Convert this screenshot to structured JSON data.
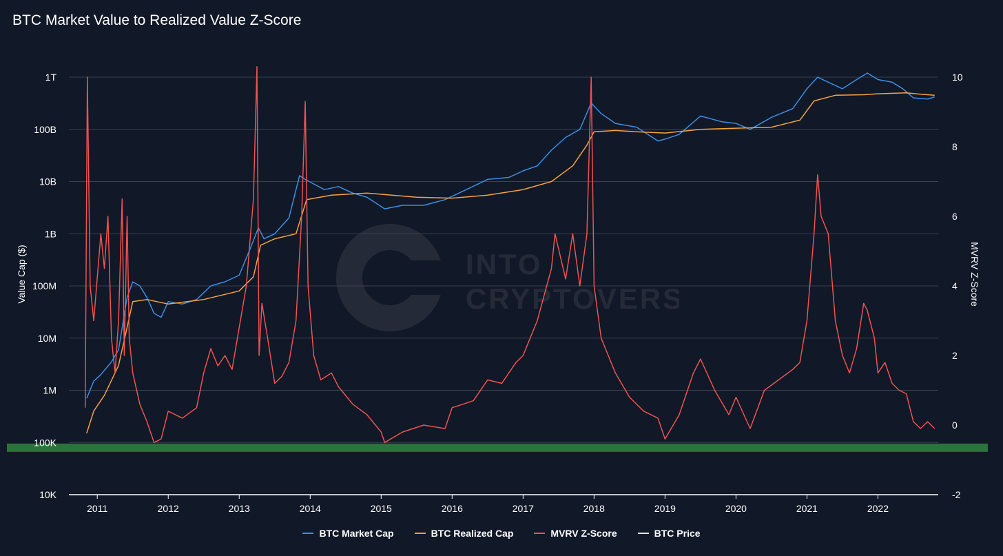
{
  "chart_data": {
    "type": "line",
    "title": "BTC Market Value to Realized Value Z-Score",
    "ylabel_left": "Value Cap ($)",
    "ylabel_right": "MVRV Z-Score",
    "left_axis": {
      "scale": "log",
      "ylim": [
        10000,
        1000000000000
      ],
      "ticks": [
        {
          "value": 1000000000000,
          "label": "1T"
        },
        {
          "value": 100000000000,
          "label": "100B"
        },
        {
          "value": 10000000000,
          "label": "10B"
        },
        {
          "value": 1000000000,
          "label": "1B"
        },
        {
          "value": 100000000,
          "label": "100M"
        },
        {
          "value": 10000000,
          "label": "10M"
        },
        {
          "value": 1000000,
          "label": "1M"
        },
        {
          "value": 100000,
          "label": "100K"
        },
        {
          "value": 10000,
          "label": "10K"
        }
      ]
    },
    "right_axis": {
      "scale": "linear",
      "ylim": [
        -2,
        10
      ],
      "ticks": [
        {
          "value": 10,
          "label": "10"
        },
        {
          "value": 8,
          "label": "8"
        },
        {
          "value": 6,
          "label": "6"
        },
        {
          "value": 4,
          "label": "4"
        },
        {
          "value": 2,
          "label": "2"
        },
        {
          "value": 0,
          "label": "0"
        },
        {
          "value": -2,
          "label": "-2"
        }
      ]
    },
    "x_axis": {
      "xlim": [
        2010.6,
        2022.85
      ],
      "ticks": [
        "2011",
        "2012",
        "2013",
        "2014",
        "2015",
        "2016",
        "2017",
        "2018",
        "2019",
        "2020",
        "2021",
        "2022"
      ]
    },
    "grid": true,
    "legend_position": "bottom-center",
    "green_band": {
      "color": "#2f7d3f",
      "z_value": -0.65
    },
    "watermark": {
      "lines": [
        "INTO",
        "CRYPTOVERSE"
      ]
    },
    "series": [
      {
        "name": "BTC Market Cap",
        "color": "#3b8fe6",
        "axis": "left",
        "x": [
          2010.85,
          2010.95,
          2011.05,
          2011.2,
          2011.3,
          2011.42,
          2011.5,
          2011.6,
          2011.7,
          2011.8,
          2011.9,
          2012.0,
          2012.2,
          2012.4,
          2012.6,
          2012.8,
          2013.0,
          2013.15,
          2013.27,
          2013.35,
          2013.5,
          2013.7,
          2013.85,
          2013.93,
          2014.05,
          2014.2,
          2014.4,
          2014.6,
          2014.8,
          2015.05,
          2015.3,
          2015.6,
          2015.9,
          2016.2,
          2016.5,
          2016.8,
          2017.0,
          2017.2,
          2017.4,
          2017.6,
          2017.8,
          2017.96,
          2018.1,
          2018.3,
          2018.6,
          2018.9,
          2019.0,
          2019.2,
          2019.5,
          2019.8,
          2020.0,
          2020.2,
          2020.5,
          2020.8,
          2021.0,
          2021.15,
          2021.3,
          2021.5,
          2021.7,
          2021.85,
          2022.0,
          2022.2,
          2022.35,
          2022.5,
          2022.7,
          2022.8
        ],
        "values": [
          700000,
          1500000,
          2000000,
          3500000,
          6000000,
          60000000,
          120000000,
          100000000,
          60000000,
          30000000,
          25000000,
          50000000,
          45000000,
          55000000,
          100000000,
          120000000,
          160000000,
          500000000,
          1300000000,
          800000000,
          1000000000,
          2000000000,
          13000000000,
          11000000000,
          9000000000,
          7000000000,
          8000000000,
          6000000000,
          5000000000,
          3000000000,
          3500000000,
          3500000000,
          4500000000,
          7000000000,
          11000000000,
          12000000000,
          16000000000,
          20000000000,
          40000000000,
          70000000000,
          100000000000,
          320000000000,
          200000000000,
          130000000000,
          110000000000,
          60000000000,
          65000000000,
          80000000000,
          180000000000,
          140000000000,
          130000000000,
          100000000000,
          170000000000,
          250000000000,
          600000000000,
          1000000000000,
          800000000000,
          600000000000,
          900000000000,
          1200000000000,
          900000000000,
          800000000000,
          600000000000,
          400000000000,
          380000000000,
          420000000000
        ]
      },
      {
        "name": "BTC Realized Cap",
        "color": "#f5a33c",
        "axis": "left",
        "x": [
          2010.85,
          2010.95,
          2011.1,
          2011.3,
          2011.4,
          2011.5,
          2011.7,
          2012.0,
          2012.5,
          2013.0,
          2013.2,
          2013.3,
          2013.5,
          2013.8,
          2013.95,
          2014.3,
          2014.8,
          2015.5,
          2016.0,
          2016.5,
          2017.0,
          2017.4,
          2017.7,
          2017.9,
          2018.0,
          2018.3,
          2018.6,
          2019.0,
          2019.5,
          2020.0,
          2020.5,
          2020.9,
          2021.1,
          2021.4,
          2021.8,
          2022.0,
          2022.4,
          2022.6,
          2022.8
        ],
        "values": [
          150000,
          400000,
          800000,
          3000000,
          12000000,
          50000000,
          55000000,
          45000000,
          55000000,
          80000000,
          150000000,
          600000000,
          800000000,
          1000000000,
          4500000000,
          5500000000,
          6000000000,
          5000000000,
          4800000000,
          5500000000,
          7000000000,
          10000000000,
          20000000000,
          50000000000,
          90000000000,
          95000000000,
          90000000000,
          85000000000,
          100000000000,
          105000000000,
          110000000000,
          150000000000,
          350000000000,
          450000000000,
          460000000000,
          480000000000,
          500000000000,
          470000000000,
          450000000000
        ]
      },
      {
        "name": "MVRV Z-Score",
        "color": "#ef5350",
        "axis": "right",
        "x": [
          2010.83,
          2010.86,
          2010.9,
          2010.95,
          2011.05,
          2011.1,
          2011.15,
          2011.2,
          2011.25,
          2011.3,
          2011.35,
          2011.38,
          2011.42,
          2011.45,
          2011.5,
          2011.6,
          2011.7,
          2011.8,
          2011.9,
          2012.0,
          2012.2,
          2012.4,
          2012.5,
          2012.6,
          2012.7,
          2012.8,
          2012.9,
          2013.0,
          2013.1,
          2013.2,
          2013.25,
          2013.28,
          2013.32,
          2013.4,
          2013.5,
          2013.6,
          2013.7,
          2013.8,
          2013.88,
          2013.93,
          2013.97,
          2014.05,
          2014.15,
          2014.3,
          2014.4,
          2014.6,
          2014.8,
          2015.0,
          2015.05,
          2015.3,
          2015.6,
          2015.9,
          2016.0,
          2016.3,
          2016.5,
          2016.7,
          2016.9,
          2017.0,
          2017.2,
          2017.4,
          2017.45,
          2017.6,
          2017.7,
          2017.8,
          2017.9,
          2017.96,
          2018.0,
          2018.1,
          2018.3,
          2018.5,
          2018.7,
          2018.9,
          2019.0,
          2019.2,
          2019.4,
          2019.5,
          2019.7,
          2019.9,
          2020.0,
          2020.2,
          2020.4,
          2020.6,
          2020.8,
          2020.9,
          2021.0,
          2021.1,
          2021.15,
          2021.2,
          2021.3,
          2021.4,
          2021.5,
          2021.6,
          2021.7,
          2021.8,
          2021.85,
          2021.95,
          2022.0,
          2022.1,
          2022.2,
          2022.3,
          2022.4,
          2022.5,
          2022.6,
          2022.7,
          2022.8
        ],
        "values": [
          0.5,
          10.0,
          4.0,
          3.0,
          5.5,
          4.5,
          6.0,
          2.5,
          1.5,
          3.0,
          6.5,
          2.0,
          6.0,
          2.5,
          1.5,
          0.6,
          0.1,
          -0.5,
          -0.4,
          0.4,
          0.2,
          0.5,
          1.5,
          2.2,
          1.7,
          2.0,
          1.6,
          2.8,
          4.0,
          6.5,
          10.3,
          2.0,
          3.5,
          2.5,
          1.2,
          1.4,
          1.8,
          3.0,
          6.0,
          9.3,
          4.0,
          2.0,
          1.3,
          1.5,
          1.1,
          0.6,
          0.3,
          -0.2,
          -0.5,
          -0.2,
          0.0,
          -0.1,
          0.5,
          0.7,
          1.3,
          1.2,
          1.8,
          2.0,
          3.0,
          4.5,
          5.5,
          4.2,
          5.5,
          4.0,
          5.5,
          10.0,
          4.0,
          2.5,
          1.5,
          0.8,
          0.4,
          0.2,
          -0.4,
          0.3,
          1.5,
          1.9,
          1.0,
          0.3,
          0.8,
          -0.1,
          1.0,
          1.3,
          1.6,
          1.8,
          3.0,
          5.5,
          7.2,
          6.0,
          5.5,
          3.0,
          2.0,
          1.5,
          2.2,
          3.5,
          3.3,
          2.5,
          1.5,
          1.8,
          1.2,
          1.0,
          0.9,
          0.1,
          -0.1,
          0.1,
          -0.1
        ]
      },
      {
        "name": "BTC Price",
        "color": "#e6e6e6",
        "axis": "left",
        "x": [],
        "values": []
      }
    ]
  }
}
